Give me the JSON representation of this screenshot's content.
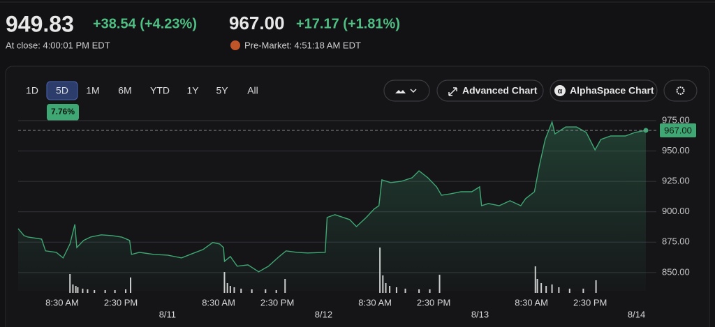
{
  "header": {
    "price": "949.83",
    "change": "+38.54 (+4.23%)",
    "close_time": "At close: 4:00:01 PM EDT",
    "pre_price": "967.00",
    "pre_change": "+17.17 (+1.81%)",
    "pre_time": "Pre-Market: 4:51:18 AM EDT"
  },
  "toolbar": {
    "ranges": [
      "1D",
      "5D",
      "1M",
      "6M",
      "YTD",
      "1Y",
      "5Y",
      "All"
    ],
    "selected": 1,
    "range_change": "7.76%",
    "buttons": [
      "Advanced Chart",
      "AlphaSpace Chart"
    ]
  },
  "chart_data": {
    "type": "line",
    "series": [
      {
        "color": "#3fa773",
        "x": [
          0,
          0.6,
          1,
          2.4,
          2.8,
          3.9,
          4.6,
          5.3,
          5.8,
          6,
          6.7,
          7.4,
          8.5,
          9.6,
          10.6,
          11.4,
          11.6,
          12.4,
          13.9,
          15.3,
          16.7,
          17.8,
          18.9,
          19.9,
          20.6,
          21,
          21.1,
          21.7,
          22.4,
          23.5,
          24.6,
          25.6,
          26.7,
          27.4,
          28.5,
          29.6,
          31.4,
          31.6,
          32.4,
          33.9,
          34.6,
          35.6,
          36.4,
          36.9,
          37.2,
          38.1,
          39.2,
          40.3,
          41,
          41.9,
          42.8,
          43.3,
          44.2,
          45.3,
          46.4,
          47.2,
          47.4,
          48.1,
          49.2,
          50.3,
          51.4,
          51.9,
          52.8,
          53.3,
          53.9,
          54.6,
          54.9,
          56,
          57.1,
          58.1,
          59,
          59.6,
          60.6,
          62.1,
          63.1,
          64.2
        ],
        "values": [
          886.1,
          880.4,
          879.2,
          877.5,
          867.8,
          866.6,
          862,
          873.5,
          889.6,
          870.6,
          876.4,
          879.2,
          881,
          880.4,
          879.2,
          876.4,
          864.9,
          866.6,
          864.9,
          864.3,
          862,
          865.5,
          868.9,
          874.7,
          873.5,
          870.6,
          859.2,
          863.2,
          855.2,
          856.3,
          850.6,
          855.2,
          863.2,
          867.8,
          866.6,
          866.1,
          866.6,
          895.3,
          897.6,
          893.6,
          887.8,
          895.3,
          902.2,
          905,
          926.3,
          924,
          925.1,
          928,
          933.7,
          928,
          920.5,
          913.6,
          914.7,
          916.5,
          916.5,
          920.5,
          905,
          906.8,
          905,
          909.1,
          905,
          910.8,
          916.5,
          937.7,
          959.5,
          973.9,
          964.1,
          969.8,
          969.8,
          965.3,
          950.9,
          959.5,
          962.4,
          962.4,
          965.3,
          967
        ]
      }
    ],
    "volume": {
      "color": "#d0d0d0",
      "x": [
        5.3,
        5.6,
        5.9,
        6.1,
        6.6,
        7.1,
        7.8,
        8.9,
        9.9,
        11,
        11.5,
        21.1,
        21.4,
        21.7,
        22.1,
        22.8,
        23.9,
        25.3,
        26.4,
        27.3,
        37,
        37.3,
        37.6,
        38,
        38.7,
        39.6,
        41,
        42.1,
        43.1,
        52.9,
        53.1,
        53.5,
        54,
        54.6,
        55.3,
        56.4,
        57.8,
        59.1
      ],
      "values": [
        27,
        12,
        10,
        8,
        6,
        5,
        4,
        4,
        4,
        5,
        22,
        30,
        14,
        10,
        8,
        6,
        5,
        5,
        4,
        20,
        65,
        25,
        14,
        10,
        8,
        6,
        5,
        5,
        26,
        38,
        20,
        14,
        10,
        12,
        8,
        6,
        6,
        18
      ],
      "vlim": [
        0,
        70
      ]
    },
    "xlim": [
      0,
      64.2
    ],
    "xticks": [
      {
        "value": 4.5,
        "label": "8:30 AM"
      },
      {
        "value": 10.5,
        "label": "2:30 PM"
      },
      {
        "value": 20.5,
        "label": "8:30 AM"
      },
      {
        "value": 26.5,
        "label": "2:30 PM"
      },
      {
        "value": 36.5,
        "label": "8:30 AM"
      },
      {
        "value": 42.5,
        "label": "2:30 PM"
      },
      {
        "value": 52.5,
        "label": "8:30 AM"
      },
      {
        "value": 58.5,
        "label": "2:30 PM"
      }
    ],
    "date_ticks": [
      {
        "value": 16,
        "label": "8/11"
      },
      {
        "value": 32,
        "label": "8/12"
      },
      {
        "value": 48,
        "label": "8/13"
      },
      {
        "value": 64,
        "label": "8/14"
      }
    ],
    "ylim": [
      835,
      980
    ],
    "yticks": [
      {
        "value": 850,
        "label": "850.00"
      },
      {
        "value": 875,
        "label": "875.00"
      },
      {
        "value": 900,
        "label": "900.00"
      },
      {
        "value": 925,
        "label": "925.00"
      },
      {
        "value": 950,
        "label": "950.00"
      },
      {
        "value": 975,
        "label": "975.00"
      }
    ],
    "current": {
      "value": 967,
      "label": "967.00"
    },
    "grid": true
  }
}
